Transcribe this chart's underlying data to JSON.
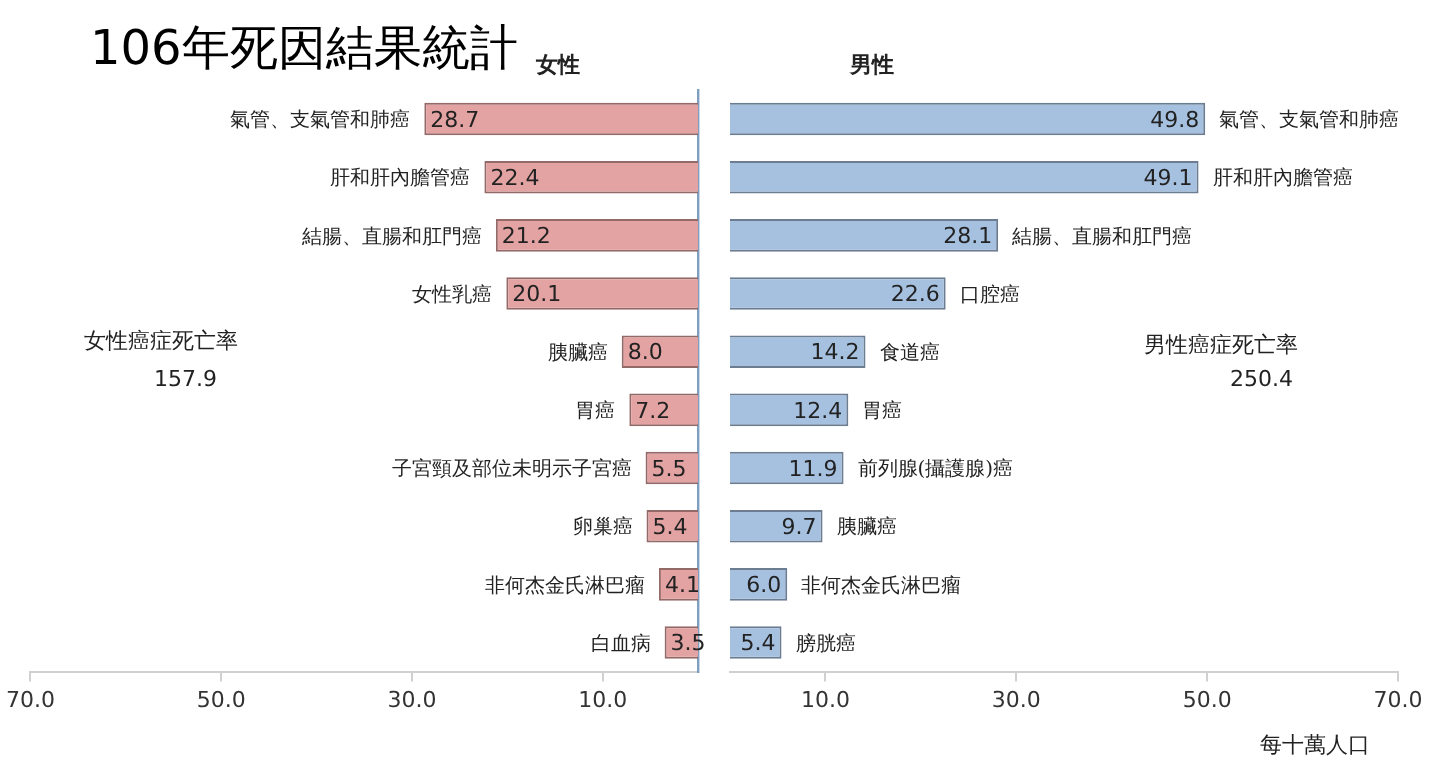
{
  "chart_data": [
    {
      "type": "bar",
      "orientation": "horizontal",
      "title": "106年死因結果統計",
      "subtitle": "女性",
      "categories": [
        "氣管、支氣管和肺癌",
        "肝和肝內膽管癌",
        "結腸、直腸和肛門癌",
        "女性乳癌",
        "胰臟癌",
        "胃癌",
        "子宮頸及部位未明示子宮癌",
        "卵巢癌",
        "非何杰金氏淋巴瘤",
        "白血病"
      ],
      "series": [
        {
          "color": "#e3a3a2",
          "values": [
            28.7,
            22.4,
            21.2,
            20.1,
            8.0,
            7.2,
            5.5,
            5.4,
            4.1,
            3.5
          ],
          "value_labels": [
            "28.7",
            "22.4",
            "21.2",
            "20.1",
            "8.0",
            "7.2",
            "5.5",
            "5.4",
            "4.1",
            "3.5"
          ]
        }
      ],
      "xlim": [
        70,
        0
      ],
      "xticks": [
        {
          "value": 70,
          "label": "70.0"
        },
        {
          "value": 50,
          "label": "50.0"
        },
        {
          "value": 30,
          "label": "30.0"
        },
        {
          "value": 10,
          "label": "10.0"
        }
      ],
      "tick_labels": "x",
      "annotations": [
        "女性癌症死亡率",
        "157.9"
      ]
    },
    {
      "type": "bar",
      "orientation": "horizontal",
      "subtitle": "男性",
      "categories": [
        "氣管、支氣管和肺癌",
        "肝和肝內膽管癌",
        "結腸、直腸和肛門癌",
        "口腔癌",
        "食道癌",
        "胃癌",
        "前列腺(攝護腺)癌",
        "胰臟癌",
        "非何杰金氏淋巴瘤",
        "膀胱癌"
      ],
      "series": [
        {
          "color": "#a6c1e0",
          "values": [
            49.8,
            49.1,
            28.1,
            22.6,
            14.2,
            12.4,
            11.9,
            9.7,
            6.0,
            5.4
          ],
          "value_labels": [
            "49.8",
            "49.1",
            "28.1",
            "22.6",
            "14.2",
            "12.4",
            "11.9",
            "9.7",
            "6.0",
            "5.4"
          ]
        }
      ],
      "xlim": [
        0,
        70
      ],
      "xticks": [
        {
          "value": 10,
          "label": "10.0"
        },
        {
          "value": 30,
          "label": "30.0"
        },
        {
          "value": 50,
          "label": "50.0"
        },
        {
          "value": 70,
          "label": "70.0"
        }
      ],
      "tick_labels": "x",
      "annotations": [
        "男性癌症死亡率",
        "250.4",
        "每十萬人口"
      ]
    }
  ]
}
